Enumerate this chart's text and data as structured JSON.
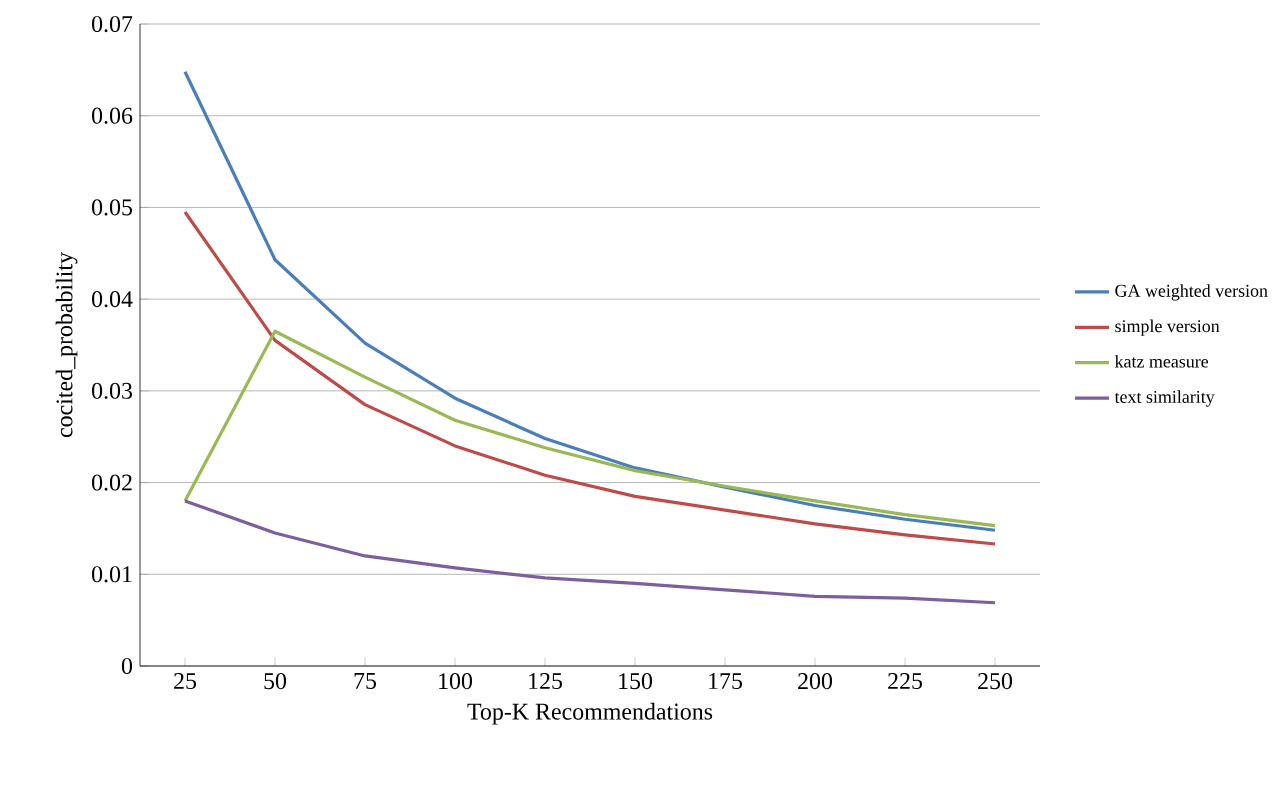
{
  "chart_data": {
    "type": "line",
    "xlabel": "Top-K Recommendations",
    "ylabel": "cocited_probability",
    "categories": [
      "25",
      "50",
      "75",
      "100",
      "125",
      "150",
      "175",
      "200",
      "225",
      "250"
    ],
    "series": [
      {
        "name": "GA weighted version",
        "color": "#4a7ebb",
        "values": [
          0.0648,
          0.0443,
          0.0352,
          0.0292,
          0.0248,
          0.0216,
          0.0195,
          0.0175,
          0.016,
          0.0148
        ]
      },
      {
        "name": "simple version",
        "color": "#be4b48",
        "values": [
          0.0495,
          0.0355,
          0.0285,
          0.024,
          0.0208,
          0.0185,
          0.017,
          0.0155,
          0.0143,
          0.0133
        ]
      },
      {
        "name": "katz measure",
        "color": "#98b954",
        "values": [
          0.018,
          0.0365,
          0.0315,
          0.0268,
          0.0238,
          0.0213,
          0.0196,
          0.018,
          0.0165,
          0.0153
        ]
      },
      {
        "name": "text similarity",
        "color": "#7d5fa0",
        "values": [
          0.018,
          0.0145,
          0.012,
          0.0107,
          0.0096,
          0.009,
          0.0083,
          0.0076,
          0.0074,
          0.0069
        ]
      }
    ],
    "ylim": [
      0,
      0.07
    ],
    "yticks": [
      0,
      0.01,
      0.02,
      0.03,
      0.04,
      0.05,
      0.06,
      0.07
    ],
    "grid": "y",
    "legend": "right",
    "marker": "none",
    "line_style": "solid"
  }
}
